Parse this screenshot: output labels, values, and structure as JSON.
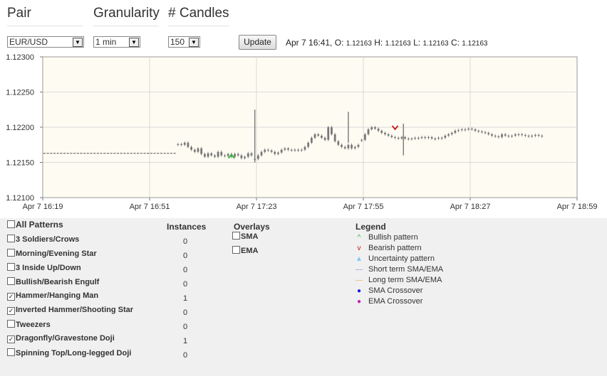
{
  "header": {
    "pair_label": "Pair",
    "granularity_label": "Granularity",
    "candles_label": "# Candles"
  },
  "controls": {
    "pair_value": "EUR/USD",
    "granularity_value": "1 min",
    "candles_value": "150",
    "update_label": "Update"
  },
  "ohlc": {
    "time": "Apr 7 16:41,",
    "o_label": "O:",
    "o_value": "1.12163",
    "h_label": "H:",
    "h_value": "1.12163",
    "l_label": "L:",
    "l_value": "1.12163",
    "c_label": "C:",
    "c_value": "1.12163"
  },
  "chart_data": {
    "type": "candlestick",
    "ylim": [
      1.121,
      1.123
    ],
    "y_ticks": [
      "1.12300",
      "1.12250",
      "1.12200",
      "1.12150",
      "1.12100"
    ],
    "y_tick_values": [
      1.123,
      1.1225,
      1.122,
      1.1215,
      1.121
    ],
    "x_ticks": [
      "Apr 7 16:19",
      "Apr 7 16:51",
      "Apr 7 17:23",
      "Apr 7 17:55",
      "Apr 7 18:27",
      "Apr 7 18:59"
    ],
    "x_tick_minutes": [
      0,
      32,
      64,
      96,
      128,
      160
    ],
    "x_range_minutes": [
      0,
      160
    ],
    "colors": {
      "plot_bg": "#fefcf2",
      "grid": "#d9d9d9",
      "candle": "#777777",
      "bullish": "#2db82d",
      "bearish": "#cc1111"
    },
    "segments": [
      {
        "from": 0.5,
        "to": 40,
        "value": 1.12163
      },
      {
        "from": 40,
        "to": 63,
        "values": [
          1.12176,
          1.12175,
          1.12178,
          1.12172,
          1.12168,
          1.12165,
          1.1217,
          1.12162,
          1.12158,
          1.12163,
          1.1216,
          1.12158,
          1.12165,
          1.1216,
          1.12159,
          1.12162,
          1.12158,
          1.12162,
          1.1216,
          1.12156,
          1.12158,
          1.12163,
          1.1216
        ]
      },
      {
        "from": 63,
        "to": 95,
        "values": [
          1.12155,
          1.1216,
          1.12165,
          1.12168,
          1.12167,
          1.12165,
          1.12162,
          1.12164,
          1.12168,
          1.1217,
          1.12168,
          1.12168,
          1.12168,
          1.12168,
          1.12168,
          1.12172,
          1.12178,
          1.12185,
          1.1219,
          1.12188,
          1.12185,
          1.12182,
          1.122,
          1.1219,
          1.1218,
          1.12175,
          1.12172,
          1.1217,
          1.12175,
          1.1217,
          1.12172,
          1.12175
        ]
      },
      {
        "from": 95,
        "to": 150,
        "values": [
          1.12182,
          1.1219,
          1.12197,
          1.122,
          1.12198,
          1.12195,
          1.12192,
          1.1219,
          1.12188,
          1.12186,
          1.12185,
          1.12184,
          1.12186,
          1.12184,
          1.12183,
          1.12184,
          1.12185,
          1.12185,
          1.12186,
          1.12186,
          1.12186,
          1.12184,
          1.12184,
          1.12185,
          1.12185,
          1.12188,
          1.1219,
          1.12192,
          1.12195,
          1.12196,
          1.12197,
          1.12197,
          1.12198,
          1.12197,
          1.12195,
          1.12194,
          1.12193,
          1.12192,
          1.1219,
          1.12188,
          1.12187,
          1.12186,
          1.1219,
          1.12188,
          1.12187,
          1.12188,
          1.1219,
          1.1219,
          1.12189,
          1.12188,
          1.12187,
          1.12188,
          1.12189,
          1.12188,
          1.12187
        ]
      }
    ],
    "spikes": [
      {
        "minute": 63.5,
        "high": 1.12225,
        "low": 1.1215
      },
      {
        "minute": 91.5,
        "high": 1.12222,
        "low": 1.12178
      },
      {
        "minute": 108,
        "high": 1.12205,
        "low": 1.1216
      }
    ],
    "markers": [
      {
        "type": "bullish",
        "minute": 56.5,
        "value": 1.12158
      },
      {
        "type": "bearish",
        "minute": 105.5,
        "value": 1.12199
      }
    ]
  },
  "patterns": {
    "all_label": "All Patterns",
    "instances_header": "Instances",
    "items": [
      {
        "label": "3 Soldiers/Crows",
        "checked": false,
        "instances": "0"
      },
      {
        "label": "Morning/Evening Star",
        "checked": false,
        "instances": "0"
      },
      {
        "label": "3 Inside Up/Down",
        "checked": false,
        "instances": "0"
      },
      {
        "label": "Bullish/Bearish Engulf",
        "checked": false,
        "instances": "0"
      },
      {
        "label": "Hammer/Hanging Man",
        "checked": true,
        "instances": "1"
      },
      {
        "label": "Inverted Hammer/Shooting Star",
        "checked": true,
        "instances": "0"
      },
      {
        "label": "Tweezers",
        "checked": false,
        "instances": "0"
      },
      {
        "label": "Dragonfly/Gravestone Doji",
        "checked": true,
        "instances": "1"
      },
      {
        "label": "Spinning Top/Long-legged Doji",
        "checked": false,
        "instances": "0"
      }
    ]
  },
  "overlays": {
    "title": "Overlays",
    "items": [
      {
        "label": "SMA",
        "checked": false
      },
      {
        "label": "EMA",
        "checked": false
      }
    ]
  },
  "legend": {
    "title": "Legend",
    "items": [
      {
        "label": "Bullish pattern",
        "symbol": "^",
        "color": "#2db82d",
        "icon": "bullish-pattern-icon"
      },
      {
        "label": "Bearish pattern",
        "symbol": "v",
        "color": "#cc1111",
        "icon": "bearish-pattern-icon"
      },
      {
        "label": "Uncertainty pattern",
        "symbol": "▲",
        "color": "#7ec8f0",
        "icon": "uncertainty-pattern-icon"
      },
      {
        "label": "Short term SMA/EMA",
        "symbol": "—",
        "color": "#9a8fd8",
        "icon": "short-term-line-icon"
      },
      {
        "label": "Long term SMA/EMA",
        "symbol": "—",
        "color": "#f0b060",
        "icon": "long-term-line-icon"
      },
      {
        "label": "SMA Crossover",
        "symbol": "●",
        "color": "#1a1ae0",
        "icon": "sma-crossover-dot-icon"
      },
      {
        "label": "EMA Crossover",
        "symbol": "●",
        "color": "#c020b0",
        "icon": "ema-crossover-dot-icon"
      }
    ]
  }
}
